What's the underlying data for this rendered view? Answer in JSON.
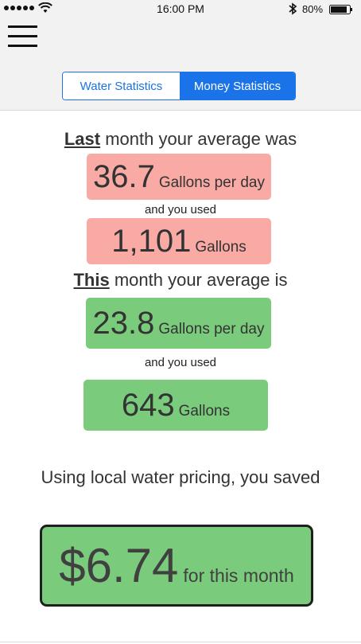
{
  "status_bar": {
    "time": "16:00 PM",
    "battery_percent": "80%",
    "icons": [
      "signal-dots-icon",
      "wifi-icon",
      "bluetooth-icon",
      "battery-icon"
    ]
  },
  "header": {
    "menu_icon": "hamburger-menu-icon",
    "tabs": [
      {
        "label": "Water Statistics",
        "selected": false
      },
      {
        "label": "Money Statistics",
        "selected": true
      }
    ]
  },
  "last_month": {
    "heading_emph": "Last",
    "heading_rest": " month your average was",
    "average_value": "36.7",
    "average_unit": "Gallons per day",
    "used_label": "and you used",
    "total_value": "1,101",
    "total_unit": "Gallons"
  },
  "this_month": {
    "heading_emph": "This",
    "heading_rest": " month your average is",
    "average_value": "23.8",
    "average_unit": "Gallons per day",
    "used_label": "and you used",
    "total_value": "643",
    "total_unit": "Gallons"
  },
  "savings": {
    "label": "Using local water pricing, you saved",
    "amount": "$6.74",
    "period": "for this month"
  },
  "colors": {
    "accent": "#1a73e8",
    "last_month_box": "#f9aaa5",
    "this_month_box": "#7acc7c"
  }
}
